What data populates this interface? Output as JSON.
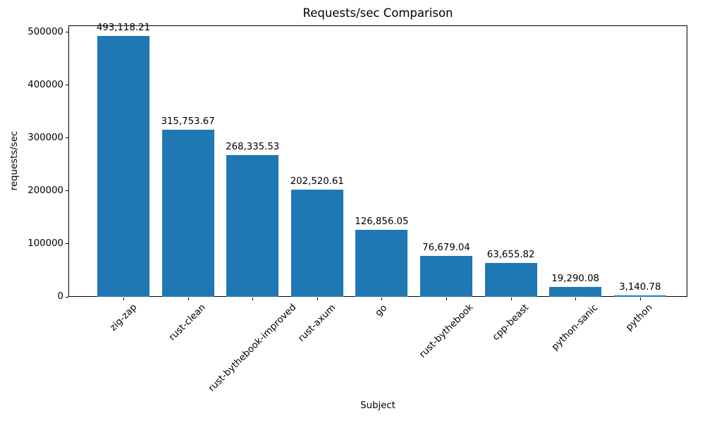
{
  "chart_data": {
    "type": "bar",
    "title": "Requests/sec Comparison",
    "xlabel": "Subject",
    "ylabel": "requests/sec",
    "categories": [
      "zig-zap",
      "rust-clean",
      "rust-bythebook-improved",
      "rust-axum",
      "go",
      "rust-bythebook",
      "cpp-beast",
      "python-sanic",
      "python"
    ],
    "values": [
      493118.21,
      315753.67,
      268335.53,
      202520.61,
      126856.05,
      76679.04,
      63655.82,
      19290.08,
      3140.78
    ],
    "value_labels": [
      "493,118.21",
      "315,753.67",
      "268,335.53",
      "202,520.61",
      "126,856.05",
      "76,679.04",
      "63,655.82",
      "19,290.08",
      "3,140.78"
    ],
    "yticks": [
      0,
      100000,
      200000,
      300000,
      400000,
      500000
    ],
    "ytick_labels": [
      "0",
      "100000",
      "200000",
      "300000",
      "400000",
      "500000"
    ],
    "ylim": [
      0,
      513333
    ],
    "bar_color": "#1f77b4",
    "grid": false,
    "legend": null
  }
}
